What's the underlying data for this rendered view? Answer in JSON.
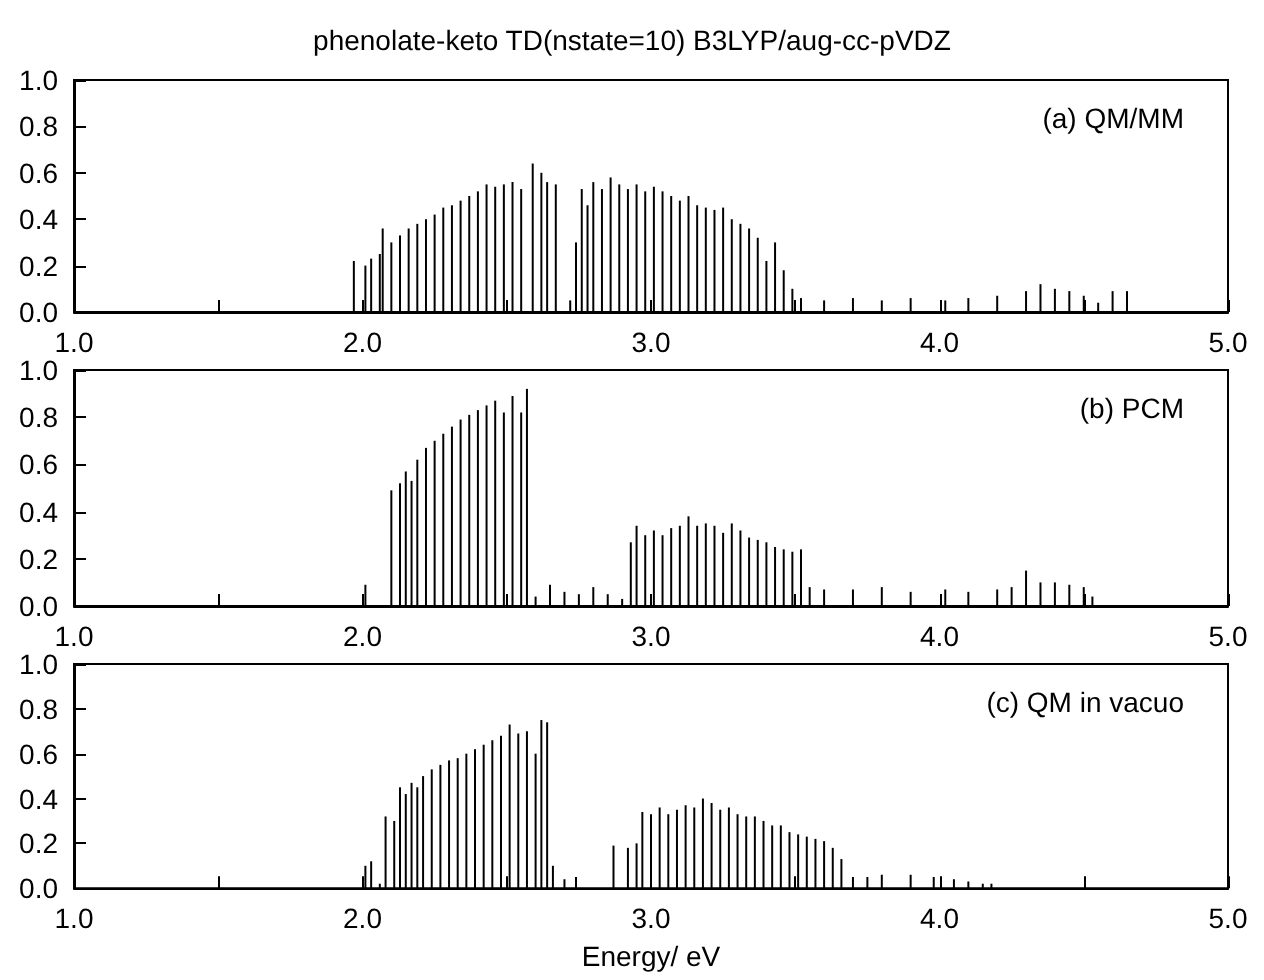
{
  "chart_data": [
    {
      "type": "bar",
      "title": "phenolate-keto TD(nstate=10) B3LYP/aug-cc-pVDZ",
      "annotations": [
        "(a) QM/MM"
      ],
      "color": "#000000",
      "xlim": [
        1.0,
        5.0
      ],
      "ylim": [
        0.0,
        1.0
      ],
      "xticks": [
        {
          "value": 1.0,
          "label": "1.0"
        },
        {
          "value": 1.5,
          "label": null
        },
        {
          "value": 2.0,
          "label": "2.0"
        },
        {
          "value": 2.5,
          "label": null
        },
        {
          "value": 3.0,
          "label": "3.0"
        },
        {
          "value": 3.5,
          "label": null
        },
        {
          "value": 4.0,
          "label": "4.0"
        },
        {
          "value": 4.5,
          "label": null
        },
        {
          "value": 5.0,
          "label": "5.0"
        }
      ],
      "yticks": [
        {
          "value": 0.0,
          "label": "0.0"
        },
        {
          "value": 0.2,
          "label": "0.2"
        },
        {
          "value": 0.4,
          "label": "0.4"
        },
        {
          "value": 0.6,
          "label": "0.6"
        },
        {
          "value": 0.8,
          "label": "0.8"
        },
        {
          "value": 1.0,
          "label": "1.0"
        }
      ],
      "x": [
        1.97,
        2.01,
        2.03,
        2.06,
        2.07,
        2.1,
        2.13,
        2.16,
        2.19,
        2.22,
        2.25,
        2.28,
        2.31,
        2.34,
        2.37,
        2.4,
        2.43,
        2.46,
        2.49,
        2.52,
        2.55,
        2.59,
        2.62,
        2.64,
        2.67,
        2.72,
        2.74,
        2.76,
        2.78,
        2.8,
        2.83,
        2.86,
        2.89,
        2.92,
        2.95,
        2.98,
        3.01,
        3.04,
        3.07,
        3.1,
        3.13,
        3.16,
        3.19,
        3.22,
        3.25,
        3.28,
        3.31,
        3.34,
        3.37,
        3.4,
        3.43,
        3.46,
        3.49,
        3.52,
        3.6,
        3.7,
        3.8,
        3.9,
        4.02,
        4.1,
        4.2,
        4.3,
        4.35,
        4.4,
        4.45,
        4.5,
        4.55,
        4.6,
        4.65
      ],
      "values": [
        0.22,
        0.2,
        0.23,
        0.25,
        0.36,
        0.3,
        0.33,
        0.36,
        0.38,
        0.4,
        0.42,
        0.45,
        0.46,
        0.48,
        0.5,
        0.52,
        0.55,
        0.54,
        0.55,
        0.56,
        0.53,
        0.64,
        0.6,
        0.56,
        0.55,
        0.05,
        0.3,
        0.53,
        0.46,
        0.56,
        0.53,
        0.58,
        0.55,
        0.53,
        0.55,
        0.52,
        0.54,
        0.52,
        0.5,
        0.48,
        0.5,
        0.46,
        0.45,
        0.44,
        0.45,
        0.4,
        0.38,
        0.36,
        0.32,
        0.22,
        0.3,
        0.18,
        0.1,
        0.06,
        0.05,
        0.06,
        0.05,
        0.06,
        0.05,
        0.06,
        0.07,
        0.09,
        0.12,
        0.1,
        0.09,
        0.07,
        0.04,
        0.09,
        0.09
      ]
    },
    {
      "type": "bar",
      "annotations": [
        "(b) PCM"
      ],
      "color": "#000000",
      "xlim": [
        1.0,
        5.0
      ],
      "ylim": [
        0.0,
        1.0
      ],
      "xticks": [
        {
          "value": 1.0,
          "label": "1.0"
        },
        {
          "value": 1.5,
          "label": null
        },
        {
          "value": 2.0,
          "label": "2.0"
        },
        {
          "value": 2.5,
          "label": null
        },
        {
          "value": 3.0,
          "label": "3.0"
        },
        {
          "value": 3.5,
          "label": null
        },
        {
          "value": 4.0,
          "label": "4.0"
        },
        {
          "value": 4.5,
          "label": null
        },
        {
          "value": 5.0,
          "label": "5.0"
        }
      ],
      "yticks": [
        {
          "value": 0.0,
          "label": "0.0"
        },
        {
          "value": 0.2,
          "label": "0.2"
        },
        {
          "value": 0.4,
          "label": "0.4"
        },
        {
          "value": 0.6,
          "label": "0.6"
        },
        {
          "value": 0.8,
          "label": "0.8"
        },
        {
          "value": 1.0,
          "label": "1.0"
        }
      ],
      "x": [
        2.01,
        2.1,
        2.13,
        2.15,
        2.17,
        2.19,
        2.22,
        2.25,
        2.28,
        2.31,
        2.34,
        2.37,
        2.4,
        2.43,
        2.46,
        2.49,
        2.52,
        2.55,
        2.57,
        2.6,
        2.65,
        2.7,
        2.75,
        2.8,
        2.85,
        2.9,
        2.93,
        2.95,
        2.98,
        3.01,
        3.04,
        3.07,
        3.1,
        3.13,
        3.16,
        3.19,
        3.22,
        3.25,
        3.28,
        3.31,
        3.34,
        3.37,
        3.4,
        3.43,
        3.46,
        3.49,
        3.52,
        3.55,
        3.6,
        3.7,
        3.8,
        3.9,
        4.02,
        4.1,
        4.2,
        4.25,
        4.3,
        4.35,
        4.4,
        4.45,
        4.5,
        4.53
      ],
      "values": [
        0.09,
        0.49,
        0.52,
        0.57,
        0.53,
        0.62,
        0.67,
        0.7,
        0.73,
        0.76,
        0.79,
        0.81,
        0.83,
        0.85,
        0.87,
        0.82,
        0.89,
        0.82,
        0.92,
        0.04,
        0.09,
        0.06,
        0.05,
        0.08,
        0.05,
        0.03,
        0.27,
        0.34,
        0.3,
        0.32,
        0.3,
        0.33,
        0.34,
        0.38,
        0.34,
        0.35,
        0.34,
        0.31,
        0.35,
        0.32,
        0.29,
        0.28,
        0.27,
        0.25,
        0.24,
        0.23,
        0.24,
        0.08,
        0.07,
        0.07,
        0.08,
        0.06,
        0.07,
        0.06,
        0.07,
        0.08,
        0.15,
        0.1,
        0.1,
        0.09,
        0.08,
        0.04
      ]
    },
    {
      "type": "bar",
      "xlabel": "Energy/ eV",
      "annotations": [
        "(c) QM in vacuo"
      ],
      "color": "#000000",
      "xlim": [
        1.0,
        5.0
      ],
      "ylim": [
        0.0,
        1.0
      ],
      "xticks": [
        {
          "value": 1.0,
          "label": "1.0"
        },
        {
          "value": 1.5,
          "label": null
        },
        {
          "value": 2.0,
          "label": "2.0"
        },
        {
          "value": 2.5,
          "label": null
        },
        {
          "value": 3.0,
          "label": "3.0"
        },
        {
          "value": 3.5,
          "label": null
        },
        {
          "value": 4.0,
          "label": "4.0"
        },
        {
          "value": 4.5,
          "label": null
        },
        {
          "value": 5.0,
          "label": "5.0"
        }
      ],
      "yticks": [
        {
          "value": 0.0,
          "label": "0.0"
        },
        {
          "value": 0.2,
          "label": "0.2"
        },
        {
          "value": 0.4,
          "label": "0.4"
        },
        {
          "value": 0.6,
          "label": "0.6"
        },
        {
          "value": 0.8,
          "label": "0.8"
        },
        {
          "value": 1.0,
          "label": "1.0"
        }
      ],
      "x": [
        2.01,
        2.03,
        2.06,
        2.08,
        2.11,
        2.13,
        2.15,
        2.17,
        2.19,
        2.21,
        2.24,
        2.27,
        2.3,
        2.33,
        2.36,
        2.39,
        2.42,
        2.45,
        2.48,
        2.51,
        2.54,
        2.57,
        2.6,
        2.62,
        2.64,
        2.66,
        2.7,
        2.74,
        2.87,
        2.92,
        2.95,
        2.97,
        3.0,
        3.03,
        3.06,
        3.09,
        3.12,
        3.15,
        3.18,
        3.21,
        3.24,
        3.27,
        3.3,
        3.33,
        3.36,
        3.39,
        3.42,
        3.45,
        3.48,
        3.51,
        3.54,
        3.57,
        3.6,
        3.63,
        3.66,
        3.7,
        3.75,
        3.8,
        3.9,
        3.98,
        4.05,
        4.1,
        4.15,
        4.18
      ],
      "values": [
        0.1,
        0.12,
        0.02,
        0.32,
        0.3,
        0.45,
        0.42,
        0.47,
        0.45,
        0.5,
        0.53,
        0.55,
        0.57,
        0.58,
        0.6,
        0.62,
        0.64,
        0.66,
        0.68,
        0.73,
        0.69,
        0.7,
        0.6,
        0.75,
        0.74,
        0.1,
        0.04,
        0.05,
        0.19,
        0.18,
        0.2,
        0.34,
        0.33,
        0.36,
        0.33,
        0.35,
        0.37,
        0.36,
        0.4,
        0.38,
        0.35,
        0.36,
        0.33,
        0.32,
        0.32,
        0.3,
        0.28,
        0.28,
        0.25,
        0.24,
        0.23,
        0.22,
        0.21,
        0.18,
        0.13,
        0.05,
        0.05,
        0.06,
        0.06,
        0.05,
        0.04,
        0.03,
        0.02,
        0.02
      ]
    }
  ]
}
